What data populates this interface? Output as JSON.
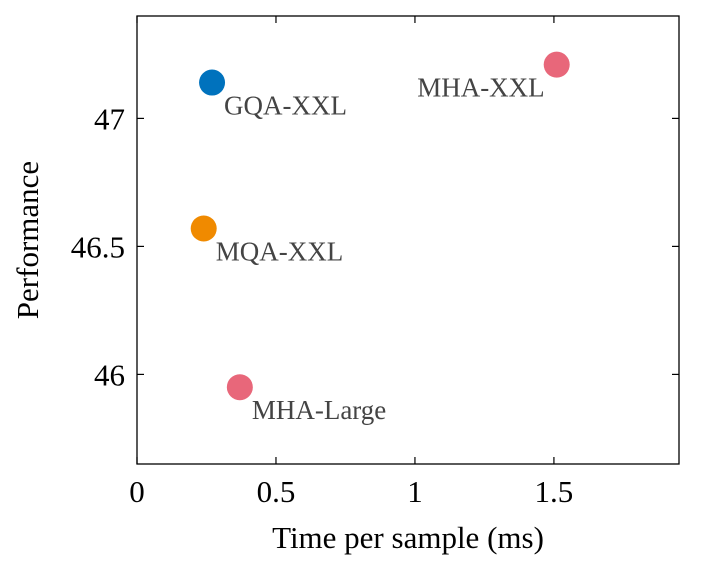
{
  "chart_data": {
    "type": "scatter",
    "title": "",
    "xlabel": "Time per sample (ms)",
    "ylabel": "Performance",
    "xlim": [
      0,
      1.95
    ],
    "ylim": [
      45.65,
      47.4
    ],
    "xticks": [
      0,
      0.5,
      1,
      1.5
    ],
    "xtick_labels": [
      "0",
      "0.5",
      "1",
      "1.5"
    ],
    "yticks": [
      46,
      46.5,
      47
    ],
    "ytick_labels": [
      "46",
      "46.5",
      "47"
    ],
    "grid": false,
    "points": [
      {
        "label": "GQA-XXL",
        "x": 0.27,
        "y": 47.14,
        "color": "#0072bd",
        "label_position": "below-right"
      },
      {
        "label": "MHA-XXL",
        "x": 1.51,
        "y": 47.21,
        "color": "#e8677a",
        "label_position": "below-left"
      },
      {
        "label": "MQA-XXL",
        "x": 0.24,
        "y": 46.57,
        "color": "#f08a00",
        "label_position": "below-right"
      },
      {
        "label": "MHA-Large",
        "x": 0.37,
        "y": 45.95,
        "color": "#e8677a",
        "label_position": "below-right"
      }
    ]
  },
  "colors": {
    "axis": "#000000",
    "label_text": "#444444",
    "background": "#ffffff"
  }
}
